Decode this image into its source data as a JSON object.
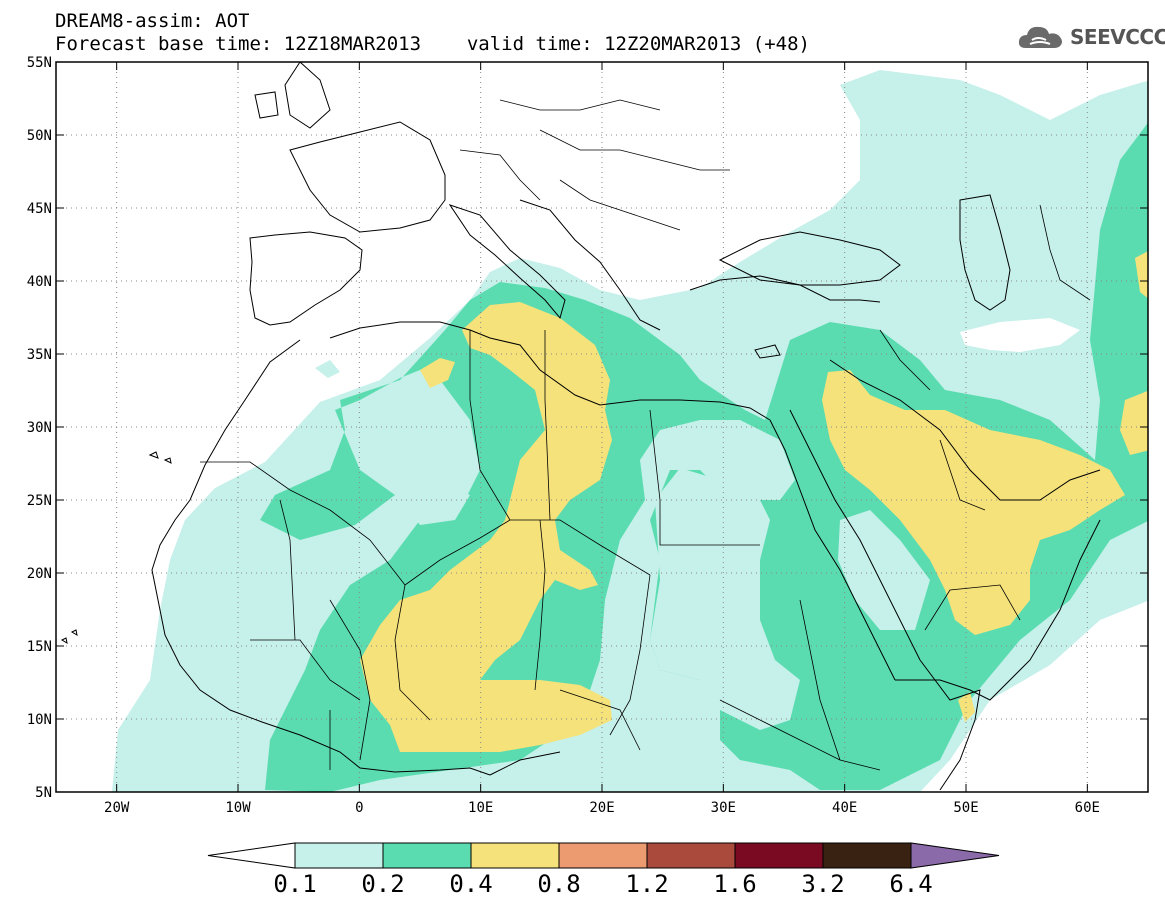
{
  "header": {
    "title_line1": "DREAM8-assim: AOT",
    "base_time": "Forecast base time: 12Z18MAR2013",
    "valid_time": "valid time: 12Z20MAR2013 (+48)"
  },
  "logo": {
    "text": "SEEVCCC",
    "icon": "cloud-icon"
  },
  "map": {
    "lon_range": [
      -25,
      65
    ],
    "lat_range": [
      5,
      55
    ],
    "lat_ticks": [
      "5N",
      "10N",
      "15N",
      "20N",
      "25N",
      "30N",
      "35N",
      "40N",
      "45N",
      "50N",
      "55N"
    ],
    "lon_ticks": [
      "20W",
      "10W",
      "0",
      "10E",
      "20E",
      "30E",
      "40E",
      "50E",
      "60E"
    ],
    "gridlines": "dotted"
  },
  "colorbar": {
    "labels": [
      "0.1",
      "0.2",
      "0.4",
      "0.8",
      "1.2",
      "1.6",
      "3.2",
      "6.4"
    ],
    "colors": [
      "#c6f0ea",
      "#5bdcb0",
      "#f5e27a",
      "#ec9a70",
      "#aa4a3c",
      "#7a0a22",
      "#3a2212",
      "#8a6aa8"
    ]
  }
}
